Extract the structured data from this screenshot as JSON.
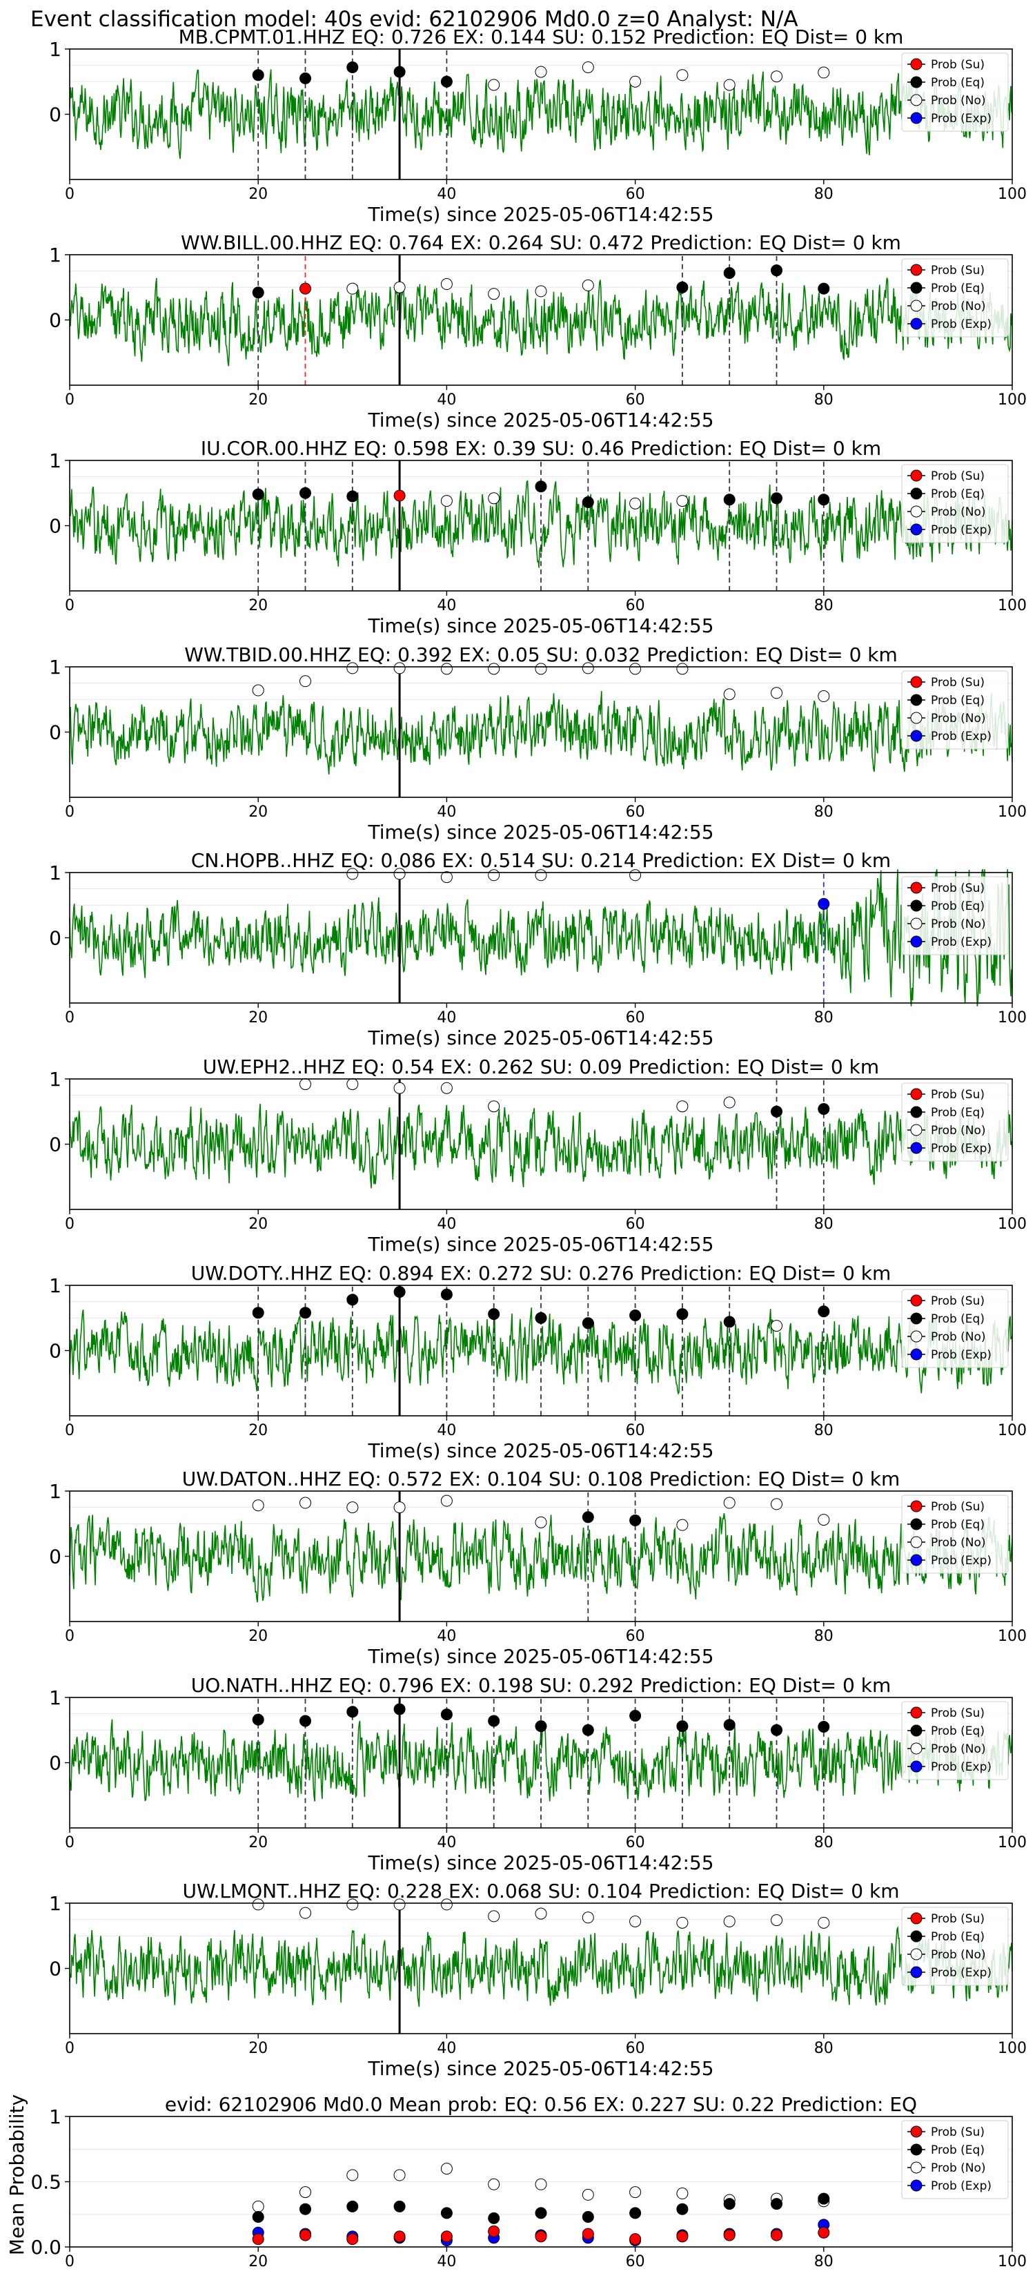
{
  "figure_title": "Event classification model: 40s evid: 62102906 Md0.0 z=0 Analyst: N/A",
  "legend_labels": {
    "su": "Prob (Su)",
    "eq": "Prob (Eq)",
    "no": "Prob (No)",
    "exp": "Prob (Exp)"
  },
  "colors": {
    "waveform": "#008000",
    "su": "#ff0000",
    "eq": "#000000",
    "no": "#ffffff",
    "exp": "#0000ff",
    "vline_eq": "#333344",
    "vline_su": "#ff2020",
    "vline_exp": "#3333cc",
    "origin_line": "#000000"
  },
  "xlabel": "Time(s) since 2025-05-06T14:42:55",
  "chart_data": [
    {
      "type": "line",
      "station": "MB.CPMT.01.HHZ",
      "title": "MB.CPMT.01.HHZ   EQ: 0.726  EX: 0.144  SU: 0.152   Prediction: EQ    Dist= 0 km",
      "xlim": [
        0,
        100
      ],
      "ylim": [
        -1,
        1
      ],
      "xticks": [
        0,
        20,
        40,
        60,
        80,
        100
      ],
      "yticks": [
        0,
        1
      ],
      "origin_time": 35,
      "points": [
        {
          "t": 20,
          "p": 0.6,
          "c": "eq"
        },
        {
          "t": 25,
          "p": 0.55,
          "c": "eq"
        },
        {
          "t": 30,
          "p": 0.72,
          "c": "eq"
        },
        {
          "t": 35,
          "p": 0.65,
          "c": "eq"
        },
        {
          "t": 40,
          "p": 0.5,
          "c": "eq"
        },
        {
          "t": 45,
          "p": 0.45,
          "c": "no"
        },
        {
          "t": 50,
          "p": 0.65,
          "c": "no"
        },
        {
          "t": 55,
          "p": 0.72,
          "c": "no"
        },
        {
          "t": 60,
          "p": 0.5,
          "c": "no"
        },
        {
          "t": 65,
          "p": 0.6,
          "c": "no"
        },
        {
          "t": 70,
          "p": 0.45,
          "c": "no"
        },
        {
          "t": 75,
          "p": 0.58,
          "c": "no"
        },
        {
          "t": 80,
          "p": 0.64,
          "c": "no"
        }
      ],
      "vlines": [
        {
          "t": 20,
          "c": "eq"
        },
        {
          "t": 25,
          "c": "eq"
        },
        {
          "t": 30,
          "c": "eq"
        },
        {
          "t": 40,
          "c": "eq"
        }
      ]
    },
    {
      "type": "line",
      "station": "WW.BILL.00.HHZ",
      "title": "WW.BILL.00.HHZ   EQ: 0.764  EX: 0.264  SU: 0.472   Prediction: EQ    Dist= 0 km",
      "xlim": [
        0,
        100
      ],
      "ylim": [
        -1,
        1
      ],
      "xticks": [
        0,
        20,
        40,
        60,
        80,
        100
      ],
      "yticks": [
        0,
        1
      ],
      "origin_time": 35,
      "points": [
        {
          "t": 20,
          "p": 0.42,
          "c": "eq"
        },
        {
          "t": 25,
          "p": 0.48,
          "c": "su"
        },
        {
          "t": 30,
          "p": 0.48,
          "c": "no"
        },
        {
          "t": 35,
          "p": 0.5,
          "c": "no"
        },
        {
          "t": 40,
          "p": 0.55,
          "c": "no"
        },
        {
          "t": 45,
          "p": 0.4,
          "c": "no"
        },
        {
          "t": 50,
          "p": 0.44,
          "c": "no"
        },
        {
          "t": 55,
          "p": 0.53,
          "c": "no"
        },
        {
          "t": 65,
          "p": 0.5,
          "c": "eq"
        },
        {
          "t": 70,
          "p": 0.72,
          "c": "eq"
        },
        {
          "t": 75,
          "p": 0.76,
          "c": "eq"
        },
        {
          "t": 80,
          "p": 0.48,
          "c": "eq"
        }
      ],
      "vlines": [
        {
          "t": 20,
          "c": "eq"
        },
        {
          "t": 25,
          "c": "su"
        },
        {
          "t": 65,
          "c": "eq"
        },
        {
          "t": 70,
          "c": "eq"
        },
        {
          "t": 75,
          "c": "eq"
        }
      ]
    },
    {
      "type": "line",
      "station": "IU.COR.00.HHZ",
      "title": "IU.COR.00.HHZ   EQ: 0.598  EX: 0.39  SU: 0.46   Prediction: EQ    Dist= 0 km",
      "xlim": [
        0,
        100
      ],
      "ylim": [
        -1,
        1
      ],
      "xticks": [
        0,
        20,
        40,
        60,
        80,
        100
      ],
      "yticks": [
        0,
        1
      ],
      "origin_time": 35,
      "points": [
        {
          "t": 20,
          "p": 0.48,
          "c": "eq"
        },
        {
          "t": 25,
          "p": 0.5,
          "c": "eq"
        },
        {
          "t": 30,
          "p": 0.45,
          "c": "eq"
        },
        {
          "t": 35,
          "p": 0.46,
          "c": "su"
        },
        {
          "t": 40,
          "p": 0.38,
          "c": "no"
        },
        {
          "t": 45,
          "p": 0.42,
          "c": "no"
        },
        {
          "t": 50,
          "p": 0.6,
          "c": "eq"
        },
        {
          "t": 55,
          "p": 0.36,
          "c": "eq"
        },
        {
          "t": 60,
          "p": 0.34,
          "c": "no"
        },
        {
          "t": 65,
          "p": 0.38,
          "c": "no"
        },
        {
          "t": 70,
          "p": 0.4,
          "c": "eq"
        },
        {
          "t": 75,
          "p": 0.42,
          "c": "eq"
        },
        {
          "t": 80,
          "p": 0.4,
          "c": "eq"
        }
      ],
      "vlines": [
        {
          "t": 20,
          "c": "eq"
        },
        {
          "t": 25,
          "c": "eq"
        },
        {
          "t": 30,
          "c": "eq"
        },
        {
          "t": 50,
          "c": "eq"
        },
        {
          "t": 55,
          "c": "eq"
        },
        {
          "t": 70,
          "c": "eq"
        },
        {
          "t": 75,
          "c": "eq"
        },
        {
          "t": 80,
          "c": "eq"
        }
      ]
    },
    {
      "type": "line",
      "station": "WW.TBID.00.HHZ",
      "title": "WW.TBID.00.HHZ   EQ: 0.392  EX: 0.05  SU: 0.032   Prediction: EQ    Dist= 0 km",
      "xlim": [
        0,
        100
      ],
      "ylim": [
        -1,
        1
      ],
      "xticks": [
        0,
        20,
        40,
        60,
        80,
        100
      ],
      "yticks": [
        0,
        1
      ],
      "origin_time": 35,
      "points": [
        {
          "t": 20,
          "p": 0.64,
          "c": "no"
        },
        {
          "t": 25,
          "p": 0.78,
          "c": "no"
        },
        {
          "t": 30,
          "p": 0.98,
          "c": "no"
        },
        {
          "t": 35,
          "p": 0.98,
          "c": "no"
        },
        {
          "t": 40,
          "p": 0.97,
          "c": "no"
        },
        {
          "t": 45,
          "p": 0.97,
          "c": "no"
        },
        {
          "t": 50,
          "p": 0.97,
          "c": "no"
        },
        {
          "t": 55,
          "p": 0.98,
          "c": "no"
        },
        {
          "t": 60,
          "p": 0.97,
          "c": "no"
        },
        {
          "t": 65,
          "p": 0.97,
          "c": "no"
        },
        {
          "t": 70,
          "p": 0.58,
          "c": "no"
        },
        {
          "t": 75,
          "p": 0.6,
          "c": "no"
        },
        {
          "t": 80,
          "p": 0.55,
          "c": "no"
        }
      ],
      "vlines": []
    },
    {
      "type": "line",
      "station": "CN.HOPB..HHZ",
      "title": "CN.HOPB..HHZ   EQ: 0.086  EX: 0.514  SU: 0.214   Prediction: EX    Dist= 0 km",
      "xlim": [
        0,
        100
      ],
      "ylim": [
        -1,
        1
      ],
      "xticks": [
        0,
        20,
        40,
        60,
        80,
        100
      ],
      "yticks": [
        0,
        1
      ],
      "origin_time": 35,
      "points": [
        {
          "t": 30,
          "p": 0.98,
          "c": "no"
        },
        {
          "t": 35,
          "p": 0.98,
          "c": "no"
        },
        {
          "t": 40,
          "p": 0.93,
          "c": "no"
        },
        {
          "t": 45,
          "p": 0.96,
          "c": "no"
        },
        {
          "t": 50,
          "p": 0.96,
          "c": "no"
        },
        {
          "t": 60,
          "p": 0.96,
          "c": "no"
        },
        {
          "t": 80,
          "p": 0.52,
          "c": "exp"
        }
      ],
      "vlines": [
        {
          "t": 80,
          "c": "exp"
        }
      ]
    },
    {
      "type": "line",
      "station": "UW.EPH2..HHZ",
      "title": "UW.EPH2..HHZ   EQ: 0.54  EX: 0.262  SU: 0.09   Prediction: EQ    Dist= 0 km",
      "xlim": [
        0,
        100
      ],
      "ylim": [
        -1,
        1
      ],
      "xticks": [
        0,
        20,
        40,
        60,
        80,
        100
      ],
      "yticks": [
        0,
        1
      ],
      "origin_time": 35,
      "points": [
        {
          "t": 25,
          "p": 0.92,
          "c": "no"
        },
        {
          "t": 30,
          "p": 0.92,
          "c": "no"
        },
        {
          "t": 35,
          "p": 0.86,
          "c": "no"
        },
        {
          "t": 40,
          "p": 0.86,
          "c": "no"
        },
        {
          "t": 45,
          "p": 0.58,
          "c": "no"
        },
        {
          "t": 65,
          "p": 0.58,
          "c": "no"
        },
        {
          "t": 70,
          "p": 0.64,
          "c": "no"
        },
        {
          "t": 75,
          "p": 0.5,
          "c": "eq"
        },
        {
          "t": 80,
          "p": 0.54,
          "c": "eq"
        }
      ],
      "vlines": [
        {
          "t": 75,
          "c": "eq"
        },
        {
          "t": 80,
          "c": "eq"
        }
      ]
    },
    {
      "type": "line",
      "station": "UW.DOTY..HHZ",
      "title": "UW.DOTY..HHZ   EQ: 0.894  EX: 0.272  SU: 0.276   Prediction: EQ    Dist= 0 km",
      "xlim": [
        0,
        100
      ],
      "ylim": [
        -1,
        1
      ],
      "xticks": [
        0,
        20,
        40,
        60,
        80,
        100
      ],
      "yticks": [
        0,
        1
      ],
      "origin_time": 35,
      "points": [
        {
          "t": 20,
          "p": 0.58,
          "c": "eq"
        },
        {
          "t": 25,
          "p": 0.58,
          "c": "eq"
        },
        {
          "t": 30,
          "p": 0.78,
          "c": "eq"
        },
        {
          "t": 35,
          "p": 0.9,
          "c": "eq"
        },
        {
          "t": 40,
          "p": 0.86,
          "c": "eq"
        },
        {
          "t": 45,
          "p": 0.56,
          "c": "eq"
        },
        {
          "t": 50,
          "p": 0.5,
          "c": "eq"
        },
        {
          "t": 55,
          "p": 0.42,
          "c": "eq"
        },
        {
          "t": 60,
          "p": 0.54,
          "c": "eq"
        },
        {
          "t": 65,
          "p": 0.56,
          "c": "eq"
        },
        {
          "t": 70,
          "p": 0.44,
          "c": "eq"
        },
        {
          "t": 75,
          "p": 0.38,
          "c": "no"
        },
        {
          "t": 80,
          "p": 0.6,
          "c": "eq"
        }
      ],
      "vlines": [
        {
          "t": 20,
          "c": "eq"
        },
        {
          "t": 25,
          "c": "eq"
        },
        {
          "t": 30,
          "c": "eq"
        },
        {
          "t": 40,
          "c": "eq"
        },
        {
          "t": 45,
          "c": "eq"
        },
        {
          "t": 50,
          "c": "eq"
        },
        {
          "t": 55,
          "c": "eq"
        },
        {
          "t": 60,
          "c": "eq"
        },
        {
          "t": 65,
          "c": "eq"
        },
        {
          "t": 70,
          "c": "eq"
        },
        {
          "t": 80,
          "c": "eq"
        }
      ]
    },
    {
      "type": "line",
      "station": "UW.DATON..HHZ",
      "title": "UW.DATON..HHZ   EQ: 0.572  EX: 0.104  SU: 0.108   Prediction: EQ    Dist= 0 km",
      "xlim": [
        0,
        100
      ],
      "ylim": [
        -1,
        1
      ],
      "xticks": [
        0,
        20,
        40,
        60,
        80,
        100
      ],
      "yticks": [
        0,
        1
      ],
      "origin_time": 35,
      "points": [
        {
          "t": 20,
          "p": 0.78,
          "c": "no"
        },
        {
          "t": 25,
          "p": 0.82,
          "c": "no"
        },
        {
          "t": 30,
          "p": 0.75,
          "c": "no"
        },
        {
          "t": 35,
          "p": 0.75,
          "c": "no"
        },
        {
          "t": 40,
          "p": 0.85,
          "c": "no"
        },
        {
          "t": 50,
          "p": 0.52,
          "c": "no"
        },
        {
          "t": 55,
          "p": 0.6,
          "c": "eq"
        },
        {
          "t": 60,
          "p": 0.55,
          "c": "eq"
        },
        {
          "t": 65,
          "p": 0.48,
          "c": "no"
        },
        {
          "t": 70,
          "p": 0.82,
          "c": "no"
        },
        {
          "t": 75,
          "p": 0.8,
          "c": "no"
        },
        {
          "t": 80,
          "p": 0.56,
          "c": "no"
        }
      ],
      "vlines": [
        {
          "t": 55,
          "c": "eq"
        },
        {
          "t": 60,
          "c": "eq"
        }
      ]
    },
    {
      "type": "line",
      "station": "UO.NATH..HHZ",
      "title": "UO.NATH..HHZ   EQ: 0.796  EX: 0.198  SU: 0.292   Prediction: EQ    Dist= 0 km",
      "xlim": [
        0,
        100
      ],
      "ylim": [
        -1,
        1
      ],
      "xticks": [
        0,
        20,
        40,
        60,
        80,
        100
      ],
      "yticks": [
        0,
        1
      ],
      "origin_time": 35,
      "points": [
        {
          "t": 20,
          "p": 0.66,
          "c": "eq"
        },
        {
          "t": 25,
          "p": 0.64,
          "c": "eq"
        },
        {
          "t": 30,
          "p": 0.78,
          "c": "eq"
        },
        {
          "t": 35,
          "p": 0.82,
          "c": "eq"
        },
        {
          "t": 40,
          "p": 0.74,
          "c": "eq"
        },
        {
          "t": 45,
          "p": 0.64,
          "c": "eq"
        },
        {
          "t": 50,
          "p": 0.56,
          "c": "eq"
        },
        {
          "t": 55,
          "p": 0.5,
          "c": "eq"
        },
        {
          "t": 60,
          "p": 0.72,
          "c": "eq"
        },
        {
          "t": 65,
          "p": 0.56,
          "c": "eq"
        },
        {
          "t": 70,
          "p": 0.58,
          "c": "eq"
        },
        {
          "t": 75,
          "p": 0.5,
          "c": "eq"
        },
        {
          "t": 80,
          "p": 0.55,
          "c": "eq"
        }
      ],
      "vlines": [
        {
          "t": 20,
          "c": "eq"
        },
        {
          "t": 25,
          "c": "eq"
        },
        {
          "t": 30,
          "c": "eq"
        },
        {
          "t": 40,
          "c": "eq"
        },
        {
          "t": 45,
          "c": "eq"
        },
        {
          "t": 50,
          "c": "eq"
        },
        {
          "t": 55,
          "c": "eq"
        },
        {
          "t": 60,
          "c": "eq"
        },
        {
          "t": 65,
          "c": "eq"
        },
        {
          "t": 70,
          "c": "eq"
        },
        {
          "t": 75,
          "c": "eq"
        },
        {
          "t": 80,
          "c": "eq"
        }
      ]
    },
    {
      "type": "line",
      "station": "UW.LMONT..HHZ",
      "title": "UW.LMONT..HHZ   EQ: 0.228  EX: 0.068  SU: 0.104   Prediction: EQ    Dist= 0 km",
      "xlim": [
        0,
        100
      ],
      "ylim": [
        -1,
        1
      ],
      "xticks": [
        0,
        20,
        40,
        60,
        80,
        100
      ],
      "yticks": [
        0,
        1
      ],
      "origin_time": 35,
      "points": [
        {
          "t": 20,
          "p": 0.98,
          "c": "no"
        },
        {
          "t": 25,
          "p": 0.85,
          "c": "no"
        },
        {
          "t": 30,
          "p": 0.98,
          "c": "no"
        },
        {
          "t": 35,
          "p": 0.98,
          "c": "no"
        },
        {
          "t": 40,
          "p": 0.98,
          "c": "no"
        },
        {
          "t": 45,
          "p": 0.8,
          "c": "no"
        },
        {
          "t": 50,
          "p": 0.84,
          "c": "no"
        },
        {
          "t": 55,
          "p": 0.78,
          "c": "no"
        },
        {
          "t": 60,
          "p": 0.72,
          "c": "no"
        },
        {
          "t": 65,
          "p": 0.7,
          "c": "no"
        },
        {
          "t": 70,
          "p": 0.72,
          "c": "no"
        },
        {
          "t": 75,
          "p": 0.74,
          "c": "no"
        },
        {
          "t": 80,
          "p": 0.7,
          "c": "no"
        }
      ],
      "vlines": []
    },
    {
      "type": "scatter",
      "title": "evid: 62102906  Md0.0   Mean prob:   EQ: 0.56  EX: 0.227  SU: 0.22   Prediction: EQ",
      "ylabel": "Mean Probability",
      "xlim": [
        0,
        100
      ],
      "ylim": [
        0,
        1
      ],
      "xticks": [
        0,
        20,
        40,
        60,
        80,
        100
      ],
      "yticks": [
        0.0,
        0.5,
        1.0
      ],
      "x": [
        20,
        25,
        30,
        35,
        40,
        45,
        50,
        55,
        60,
        65,
        70,
        75,
        80
      ],
      "series": [
        {
          "name": "Prob (No)",
          "key": "no",
          "values": [
            0.31,
            0.42,
            0.55,
            0.55,
            0.6,
            0.48,
            0.48,
            0.4,
            0.42,
            0.41,
            0.36,
            0.37,
            0.35
          ]
        },
        {
          "name": "Prob (Eq)",
          "key": "eq",
          "values": [
            0.23,
            0.29,
            0.31,
            0.31,
            0.26,
            0.22,
            0.26,
            0.23,
            0.26,
            0.29,
            0.33,
            0.33,
            0.37
          ]
        },
        {
          "name": "Prob (Exp)",
          "key": "exp",
          "values": [
            0.11,
            0.1,
            0.08,
            0.07,
            0.05,
            0.07,
            0.09,
            0.07,
            0.05,
            0.09,
            0.1,
            0.1,
            0.17
          ]
        },
        {
          "name": "Prob (Su)",
          "key": "su",
          "values": [
            0.06,
            0.09,
            0.06,
            0.08,
            0.08,
            0.12,
            0.08,
            0.1,
            0.06,
            0.08,
            0.09,
            0.09,
            0.11
          ]
        }
      ]
    }
  ]
}
